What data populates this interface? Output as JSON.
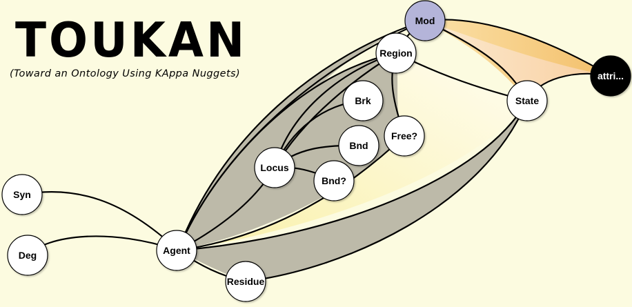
{
  "header": {
    "title": "TOUKAN",
    "subtitle": "(Toward an Ontology Using KAppa Nuggets)"
  },
  "nodes": [
    {
      "id": "mod",
      "label": "Mod"
    },
    {
      "id": "region",
      "label": "Region"
    },
    {
      "id": "attri",
      "label": "attri..."
    },
    {
      "id": "state",
      "label": "State"
    },
    {
      "id": "brk",
      "label": "Brk"
    },
    {
      "id": "free",
      "label": "Free?"
    },
    {
      "id": "bnd",
      "label": "Bnd"
    },
    {
      "id": "locus",
      "label": "Locus"
    },
    {
      "id": "bndq",
      "label": "Bnd?"
    },
    {
      "id": "syn",
      "label": "Syn"
    },
    {
      "id": "deg",
      "label": "Deg"
    },
    {
      "id": "agent",
      "label": "Agent"
    },
    {
      "id": "residue",
      "label": "Residue"
    }
  ],
  "colors": {
    "background": "#fcfbe0",
    "gray_region": "#bdbaa9",
    "orange_region": "#f5c77a",
    "peach_region": "#f8d6a5",
    "yellow_region": "#fdf6c7",
    "mod_node": "#b4b4d9",
    "attri_node": "#000000",
    "node": "#ffffff"
  }
}
